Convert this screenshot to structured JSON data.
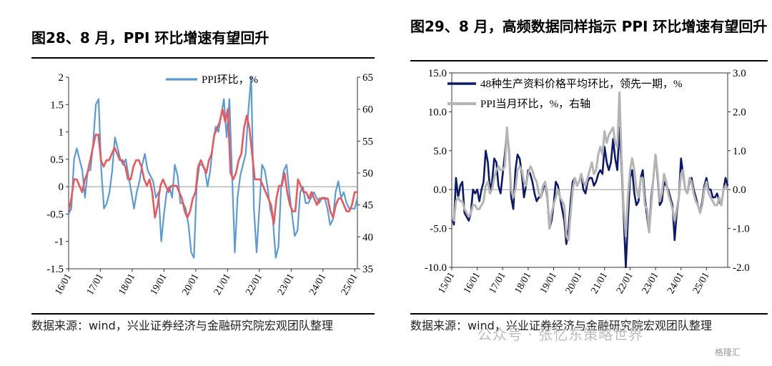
{
  "left": {
    "title": "图28、8 月，PPI 环比增速有望回升",
    "source": "数据来源：wind，兴业证券经济与金融研究院宏观团队整理"
  },
  "right": {
    "title": "图29、8 月，高频数据同样指示 PPI 环比增速有望回升",
    "source": "数据来源：wind，兴业证券经济与金融研究院宏观团队整理"
  },
  "watermark": "公众号 · 张忆东策略世界",
  "corner_logo": "格隆汇",
  "chart_data": [
    {
      "type": "line",
      "title": "",
      "x_tick_labels": [
        "16/01",
        "17/01",
        "18/01",
        "19/01",
        "20/01",
        "21/01",
        "22/01",
        "23/01",
        "24/01",
        "25/01"
      ],
      "y_left": {
        "lim": [
          -1.5,
          2
        ],
        "ticks": [
          "-1.5",
          "-1",
          "-0.5",
          "0",
          "0.5",
          "1",
          "1.5",
          "2"
        ]
      },
      "y_right": {
        "lim": [
          35,
          65
        ],
        "ticks": [
          "35",
          "40",
          "45",
          "50",
          "55",
          "60",
          "65"
        ]
      },
      "legend": "top-center",
      "series": [
        {
          "name": "PPI环比，%",
          "axis": "left",
          "color": "#5B9BD5",
          "values": [
            -0.5,
            -0.4,
            0.5,
            0.7,
            0.5,
            0.3,
            -0.2,
            0.3,
            0.3,
            0.8,
            1.5,
            1.6,
            0.3,
            -0.4,
            -0.3,
            -0.1,
            0.3,
            0.9,
            0.7,
            0.5,
            0.4,
            0.5,
            0.2,
            -0.1,
            -0.4,
            -0.1,
            0.1,
            0.4,
            0.6,
            0.3,
            0.2,
            0.1,
            -0.2,
            -0.1,
            -1.0,
            -0.5,
            -0.1,
            0.0,
            -0.2,
            0.4,
            0.2,
            -0.3,
            -0.3,
            -0.4,
            -0.7,
            -1.2,
            -1.3,
            0.0,
            0.4,
            0.4,
            0.3,
            0.0,
            0.3,
            0.8,
            1.1,
            1.0,
            1.3,
            1.6,
            0.9,
            1.6,
            0.2,
            -1.2,
            -0.2,
            0.2,
            0.4,
            0.6,
            1.4,
            2.0,
            -0.4,
            -1.2,
            -0.4,
            0.4,
            0.3,
            0.0,
            -0.4,
            -0.6,
            -1.3,
            -1.1,
            0.0,
            0.3,
            0.4,
            -0.1,
            -0.5,
            -0.9,
            -0.8,
            -0.1,
            0.0,
            -0.3,
            -0.3,
            -0.2,
            -0.1,
            -0.2,
            -0.3,
            -0.2,
            -0.2,
            -0.4,
            -0.7,
            -0.6,
            -0.1,
            0.1,
            -0.2,
            -0.1,
            -0.3,
            -0.4,
            -0.4,
            -0.4,
            -0.2
          ]
        },
        {
          "name": "",
          "axis": "right",
          "color": "#E8585C",
          "values": [
            44,
            46,
            49,
            49,
            48,
            47,
            49,
            50,
            52,
            54,
            56,
            56,
            52,
            51,
            52,
            52,
            53,
            54,
            53,
            52,
            52,
            51,
            49,
            49,
            51,
            52,
            52,
            51,
            49,
            48,
            49,
            47,
            43,
            45,
            48,
            49,
            48,
            47,
            48,
            48,
            48,
            47,
            46,
            44,
            43,
            44,
            46,
            47,
            51,
            52,
            51,
            50,
            52,
            53,
            56,
            57,
            58,
            60,
            58,
            60,
            50,
            49,
            50,
            52,
            53,
            57,
            59,
            57,
            53,
            49,
            49,
            49,
            48,
            47,
            46,
            45,
            42,
            46,
            48,
            48,
            50,
            47,
            45,
            44,
            44,
            49,
            48,
            47,
            47,
            46,
            47,
            46,
            45,
            46,
            46,
            46,
            46,
            44,
            43,
            45,
            46,
            46,
            45,
            44,
            44,
            45,
            47,
            47
          ]
        }
      ]
    },
    {
      "type": "line",
      "title": "",
      "x_tick_labels": [
        "15/01",
        "16/01",
        "17/01",
        "18/01",
        "19/01",
        "20/01",
        "21/01",
        "22/01",
        "23/01",
        "24/01",
        "25/01"
      ],
      "y_left": {
        "lim": [
          -10,
          15
        ],
        "ticks": [
          "-10.0",
          "-5.0",
          "0.0",
          "5.0",
          "10.0",
          "15.0"
        ]
      },
      "y_right": {
        "lim": [
          -2,
          3
        ],
        "ticks": [
          "-2.0",
          "-1.0",
          "0.0",
          "1.0",
          "2.0",
          "3.0"
        ]
      },
      "legend": "top-left",
      "series": [
        {
          "name": "48种生产资料价格平均环比，领先一期，%",
          "axis": "left",
          "color": "#0D1A6B",
          "values": [
            -3.5,
            -4.5,
            1.5,
            -1.0,
            0.5,
            1.0,
            -3.0,
            -3.5,
            -4.0,
            -3.0,
            0.0,
            -0.5,
            0.0,
            -1.5,
            0.0,
            1.0,
            5.0,
            3.5,
            0.0,
            1.0,
            4.0,
            3.5,
            0.5,
            -0.5,
            2.0,
            4.5,
            7.5,
            5.0,
            -1.0,
            -2.5,
            2.5,
            4.5,
            4.0,
            2.0,
            -1.0,
            0.5,
            2.5,
            2.0,
            1.0,
            -0.5,
            -1.5,
            -1.0,
            -1.0,
            0.0,
            1.0,
            -1.0,
            -5.0,
            -4.0,
            -2.0,
            1.0,
            0.5,
            -1.0,
            -2.5,
            -4.0,
            -7.0,
            -5.0,
            -1.5,
            1.0,
            1.5,
            0.5,
            1.0,
            2.0,
            0.0,
            -0.5,
            1.0,
            1.5,
            1.5,
            0.5,
            1.0,
            2.0,
            2.5,
            2.0,
            5.5,
            3.5,
            2.5,
            3.5,
            6.5,
            4.0,
            2.5,
            8.0,
            3.0,
            -3.5,
            -10.0,
            -4.0,
            1.5,
            2.5,
            -0.5,
            -2.0,
            -1.5,
            1.5,
            2.5,
            -1.0,
            -3.5,
            -5.5,
            -1.0,
            1.5,
            4.5,
            1.5,
            -2.0,
            -1.5,
            1.0,
            0.5,
            0.0,
            -1.0,
            -2.0,
            -6.5,
            -3.0,
            -1.0,
            4.0,
            2.0,
            0.0,
            -0.5,
            1.0,
            1.5,
            0.0,
            -1.0,
            -2.0,
            -3.0,
            -1.5,
            0.5,
            1.5,
            0.0,
            0.0,
            -1.0,
            -1.0,
            -0.5,
            -1.5,
            -2.0,
            0.0,
            1.5,
            0.5
          ]
        },
        {
          "name": "PPI当月环比，%，右轴",
          "axis": "right",
          "color": "#B4B4B4",
          "values": [
            -0.7,
            -0.8,
            -0.3,
            -0.2,
            -0.3,
            -0.3,
            -0.5,
            -0.6,
            -0.7,
            -0.6,
            -0.4,
            -0.4,
            -0.5,
            -0.5,
            -0.4,
            -0.3,
            0.1,
            0.2,
            -0.1,
            0.0,
            0.3,
            0.5,
            0.6,
            0.5,
            0.5,
            0.6,
            1.6,
            0.9,
            0.0,
            -0.2,
            0.0,
            0.5,
            0.6,
            0.5,
            0.2,
            0.1,
            0.4,
            0.6,
            0.5,
            0.3,
            0.2,
            -0.1,
            -0.2,
            0.1,
            0.2,
            -0.1,
            -1.0,
            -0.6,
            -0.4,
            -0.2,
            0.0,
            -0.2,
            -0.3,
            -0.4,
            -1.2,
            -1.3,
            -0.6,
            0.0,
            0.3,
            0.1,
            0.2,
            0.4,
            0.2,
            0.1,
            0.3,
            0.5,
            0.7,
            0.4,
            0.5,
            0.9,
            1.1,
            0.9,
            1.5,
            1.2,
            1.4,
            1.5,
            1.6,
            1.2,
            1.1,
            2.5,
            0.8,
            -0.5,
            -1.2,
            -0.2,
            0.5,
            0.8,
            0.5,
            0.0,
            -0.2,
            0.3,
            0.3,
            -0.4,
            -0.5,
            -1.1,
            -0.4,
            0.3,
            0.9,
            0.4,
            -0.3,
            -0.1,
            0.4,
            0.2,
            -0.1,
            -0.3,
            -0.5,
            -0.8,
            -0.5,
            -0.2,
            0.4,
            0.5,
            0.0,
            -0.1,
            0.3,
            0.2,
            -0.1,
            -0.3,
            -0.4,
            -0.6,
            -0.4,
            0.0,
            0.2,
            -0.1,
            -0.2,
            -0.3,
            -0.4,
            -0.4,
            -0.2,
            -0.4,
            0.0,
            0.1,
            0.0
          ]
        }
      ]
    }
  ]
}
